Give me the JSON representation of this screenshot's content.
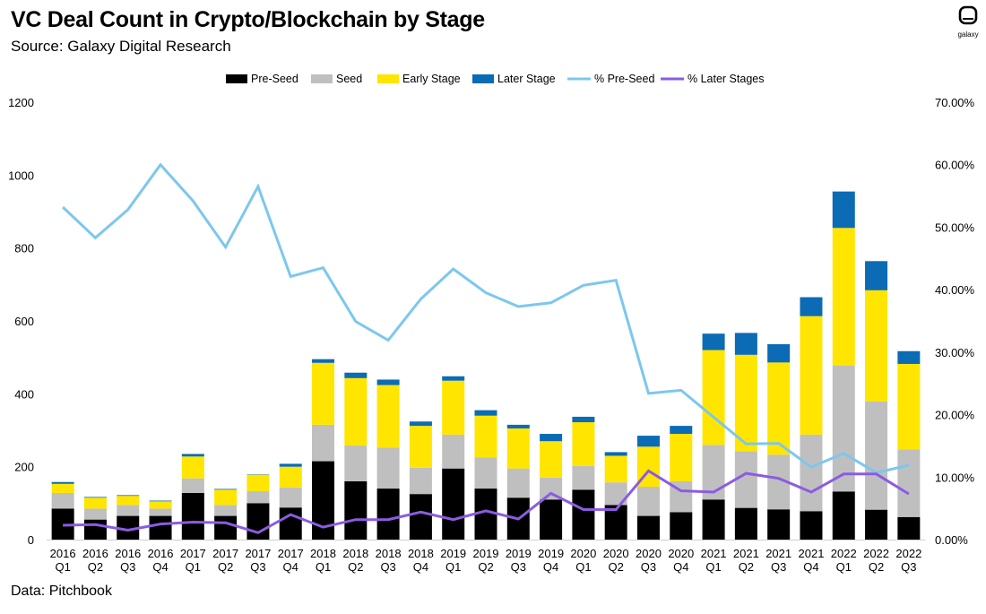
{
  "title": "VC Deal Count in Crypto/Blockchain by Stage",
  "subtitle": "Source: Galaxy Digital Research",
  "footnote": "Data: Pitchbook",
  "logo_text": "galaxy",
  "colors": {
    "pre_seed": "#000000",
    "seed": "#bfbfbf",
    "early": "#ffe500",
    "later": "#0b6bb5",
    "pct_pre_seed": "#7cc7ee",
    "pct_later": "#8b5ce0"
  },
  "chart_data": {
    "type": "bar",
    "stacked": true,
    "categories": [
      [
        "2016",
        "Q1"
      ],
      [
        "2016",
        "Q2"
      ],
      [
        "2016",
        "Q3"
      ],
      [
        "2016",
        "Q4"
      ],
      [
        "2017",
        "Q1"
      ],
      [
        "2017",
        "Q2"
      ],
      [
        "2017",
        "Q3"
      ],
      [
        "2017",
        "Q4"
      ],
      [
        "2018",
        "Q1"
      ],
      [
        "2018",
        "Q2"
      ],
      [
        "2018",
        "Q3"
      ],
      [
        "2018",
        "Q4"
      ],
      [
        "2019",
        "Q1"
      ],
      [
        "2019",
        "Q2"
      ],
      [
        "2019",
        "Q3"
      ],
      [
        "2019",
        "Q4"
      ],
      [
        "2020",
        "Q1"
      ],
      [
        "2020",
        "Q2"
      ],
      [
        "2020",
        "Q3"
      ],
      [
        "2020",
        "Q4"
      ],
      [
        "2021",
        "Q1"
      ],
      [
        "2021",
        "Q2"
      ],
      [
        "2021",
        "Q3"
      ],
      [
        "2021",
        "Q4"
      ],
      [
        "2022",
        "Q1"
      ],
      [
        "2022",
        "Q2"
      ],
      [
        "2022",
        "Q3"
      ]
    ],
    "series": [
      {
        "name": "Pre-Seed",
        "key": "pre_seed",
        "values": [
          85,
          55,
          65,
          65,
          128,
          65,
          100,
          88,
          215,
          160,
          140,
          125,
          195,
          140,
          115,
          110,
          137,
          95,
          65,
          75,
          110,
          87,
          83,
          78,
          132,
          82,
          62
        ]
      },
      {
        "name": "Seed",
        "key": "seed",
        "values": [
          43,
          30,
          30,
          20,
          40,
          30,
          33,
          55,
          100,
          98,
          112,
          72,
          93,
          85,
          80,
          60,
          65,
          62,
          80,
          85,
          150,
          155,
          150,
          210,
          345,
          297,
          185
        ]
      },
      {
        "name": "Early Stage",
        "key": "early",
        "values": [
          25,
          30,
          25,
          20,
          60,
          42,
          45,
          57,
          170,
          185,
          172,
          115,
          148,
          115,
          110,
          100,
          120,
          73,
          110,
          130,
          260,
          265,
          253,
          325,
          378,
          305,
          235
        ]
      },
      {
        "name": "Later Stage",
        "key": "later",
        "values": [
          5,
          2,
          2,
          2,
          7,
          2,
          1,
          8,
          10,
          15,
          15,
          12,
          12,
          15,
          10,
          20,
          15,
          10,
          30,
          22,
          45,
          60,
          50,
          52,
          100,
          80,
          35
        ]
      }
    ],
    "line_series": [
      {
        "name": "% Pre-Seed",
        "key": "pct_pre_seed",
        "axis": "right",
        "values": [
          53.2,
          48.3,
          52.8,
          60.0,
          54.2,
          46.8,
          56.5,
          42.1,
          43.5,
          34.9,
          31.9,
          38.5,
          43.3,
          39.5,
          37.3,
          37.9,
          40.7,
          41.5,
          23.4,
          23.9,
          19.6,
          15.3,
          15.4,
          11.6,
          13.8,
          10.7,
          11.9
        ]
      },
      {
        "name": "% Later Stages",
        "key": "pct_later",
        "axis": "right",
        "values": [
          2.3,
          2.4,
          1.5,
          2.5,
          2.8,
          2.7,
          1.1,
          4.0,
          2.0,
          3.2,
          3.2,
          4.4,
          3.2,
          4.6,
          3.3,
          7.4,
          4.8,
          4.8,
          11.0,
          7.8,
          7.6,
          10.6,
          9.8,
          7.6,
          10.5,
          10.5,
          7.3
        ]
      }
    ],
    "legend": [
      "Pre-Seed",
      "Seed",
      "Early Stage",
      "Later Stage",
      "% Pre-Seed",
      "% Later Stages"
    ],
    "legend_position": "top-center",
    "left_axis": {
      "min": 0,
      "max": 1200,
      "ticks": [
        0,
        200,
        400,
        600,
        800,
        1000,
        1200
      ],
      "tick_labels": [
        "0",
        "200",
        "400",
        "600",
        "800",
        "1000",
        "1200"
      ]
    },
    "right_axis": {
      "min": 0,
      "max": 70,
      "ticks": [
        0,
        10,
        20,
        30,
        40,
        50,
        60,
        70
      ],
      "tick_labels": [
        "0.00%",
        "10.00%",
        "20.00%",
        "30.00%",
        "40.00%",
        "50.00%",
        "60.00%",
        "70.00%"
      ]
    },
    "grid": false
  }
}
